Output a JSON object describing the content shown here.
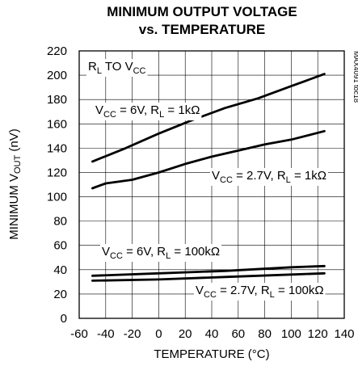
{
  "chart_data": {
    "type": "line",
    "title_lines": [
      "MINIMUM OUTPUT VOLTAGE",
      "vs. TEMPERATURE"
    ],
    "xlabel": "TEMPERATURE (°C)",
    "ylabel": {
      "prefix": "MINIMUM V",
      "sub": "OUT",
      "suffix": " (nV)"
    },
    "xlim": [
      -60,
      140
    ],
    "ylim": [
      0,
      220
    ],
    "x_ticks": [
      -60,
      -40,
      -20,
      0,
      20,
      40,
      60,
      80,
      100,
      120,
      140
    ],
    "y_ticks": [
      0,
      20,
      40,
      60,
      80,
      100,
      120,
      140,
      160,
      180,
      200,
      220
    ],
    "grid": true,
    "series": [
      {
        "x": [
          -50,
          -25,
          0,
          25,
          50,
          75,
          100,
          125
        ],
        "y": [
          129,
          140,
          152,
          163,
          173,
          181,
          191,
          201
        ]
      },
      {
        "x": [
          -50,
          -40,
          -20,
          0,
          20,
          40,
          60,
          80,
          100,
          125
        ],
        "y": [
          107,
          111,
          114,
          120,
          127,
          133,
          138,
          143,
          147,
          154
        ]
      },
      {
        "x": [
          -50,
          0,
          50,
          100,
          125
        ],
        "y": [
          35,
          37,
          39,
          42,
          43
        ]
      },
      {
        "x": [
          -50,
          0,
          50,
          100,
          125
        ],
        "y": [
          31,
          32,
          34,
          36,
          37
        ]
      }
    ],
    "annotations": [
      {
        "parts": [
          [
            "R",
            ""
          ],
          [
            "L",
            "sub"
          ],
          [
            " TO V",
            ""
          ],
          [
            "CC",
            "sub"
          ]
        ]
      },
      {
        "parts": [
          [
            "V",
            ""
          ],
          [
            "CC",
            "sub"
          ],
          [
            " = 6V, R",
            ""
          ],
          [
            "L",
            "sub"
          ],
          [
            " = 1kΩ",
            ""
          ]
        ]
      },
      {
        "parts": [
          [
            "V",
            ""
          ],
          [
            "CC",
            "sub"
          ],
          [
            " = 2.7V, R",
            ""
          ],
          [
            "L",
            "sub"
          ],
          [
            " = 1kΩ",
            ""
          ]
        ]
      },
      {
        "parts": [
          [
            "V",
            ""
          ],
          [
            "CC",
            "sub"
          ],
          [
            " = 6V, R",
            ""
          ],
          [
            "L",
            "sub"
          ],
          [
            " = 100kΩ",
            ""
          ]
        ]
      },
      {
        "parts": [
          [
            "V",
            ""
          ],
          [
            "CC",
            "sub"
          ],
          [
            " = 2.7V, R",
            ""
          ],
          [
            "L",
            "sub"
          ],
          [
            " = 100kΩ",
            ""
          ]
        ]
      }
    ],
    "doc_id": "MAX4091 toc18"
  }
}
